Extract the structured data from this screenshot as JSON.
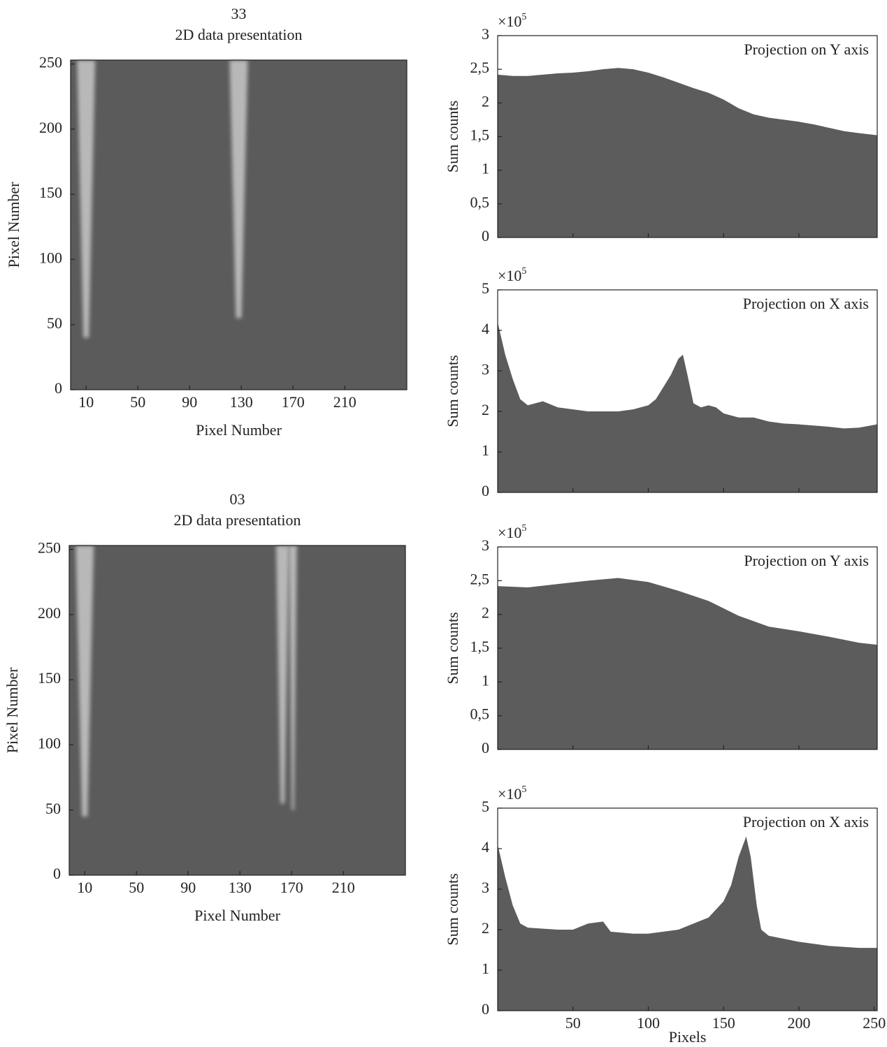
{
  "chart_data": [
    {
      "type": "image",
      "title": "33",
      "subtitle": "2D data presentation",
      "xlabel": "Pixel Number",
      "ylabel": "Pixel Number",
      "xlim": [
        -2,
        258
      ],
      "ylim": [
        0,
        253
      ],
      "xticks": [
        10,
        50,
        90,
        130,
        170,
        210
      ],
      "yticks": [
        0,
        50,
        100,
        150,
        200,
        250
      ],
      "background": "#5b5b5b",
      "band_color": "#d0d0d0",
      "bands": [
        {
          "x": 10,
          "y_from": 40,
          "y_to": 253,
          "width": 14
        },
        {
          "x": 128,
          "y_from": 55,
          "y_to": 253,
          "width": 14
        }
      ]
    },
    {
      "type": "area",
      "annotation": "Projection on Y axis",
      "ylabel": "Sum counts",
      "y_multiplier": "×10",
      "y_exponent": "5",
      "xlim": [
        0,
        252
      ],
      "ylim": [
        0,
        3
      ],
      "xticks": [
        50,
        100,
        150,
        200
      ],
      "xtick_labels": false,
      "yticks": [
        0,
        {
          "value": 0.5,
          "label": "0,5"
        },
        1,
        {
          "value": 1.5,
          "label": "1,5"
        },
        2,
        {
          "value": 2.5,
          "label": "2,5"
        },
        3
      ],
      "color": "#5c5c5c",
      "x": [
        0,
        10,
        20,
        30,
        40,
        50,
        60,
        70,
        80,
        90,
        100,
        110,
        120,
        130,
        140,
        150,
        160,
        170,
        180,
        190,
        200,
        210,
        220,
        230,
        240,
        252
      ],
      "values": [
        2.42,
        2.4,
        2.4,
        2.42,
        2.44,
        2.45,
        2.47,
        2.5,
        2.52,
        2.5,
        2.45,
        2.38,
        2.3,
        2.22,
        2.15,
        2.05,
        1.92,
        1.83,
        1.78,
        1.75,
        1.72,
        1.68,
        1.63,
        1.58,
        1.55,
        1.52
      ]
    },
    {
      "type": "area",
      "annotation": "Projection on X axis",
      "ylabel": "Sum counts",
      "y_multiplier": "×10",
      "y_exponent": "5",
      "xlim": [
        0,
        252
      ],
      "ylim": [
        0,
        5
      ],
      "xticks": [
        50,
        100,
        150,
        200
      ],
      "xtick_labels": false,
      "yticks": [
        0,
        1,
        2,
        3,
        4,
        5
      ],
      "color": "#5c5c5c",
      "x": [
        0,
        5,
        10,
        15,
        20,
        25,
        30,
        40,
        50,
        60,
        70,
        80,
        90,
        100,
        105,
        110,
        115,
        120,
        123,
        126,
        130,
        135,
        140,
        145,
        150,
        160,
        170,
        180,
        190,
        200,
        210,
        220,
        230,
        240,
        252
      ],
      "values": [
        4.2,
        3.4,
        2.8,
        2.3,
        2.15,
        2.2,
        2.25,
        2.1,
        2.05,
        2.0,
        2.0,
        2.0,
        2.05,
        2.15,
        2.3,
        2.6,
        2.9,
        3.3,
        3.4,
        2.9,
        2.2,
        2.1,
        2.15,
        2.1,
        1.95,
        1.85,
        1.85,
        1.75,
        1.7,
        1.68,
        1.65,
        1.62,
        1.58,
        1.6,
        1.68
      ]
    },
    {
      "type": "image",
      "title": "03",
      "subtitle": "2D data presentation",
      "xlabel": "Pixel Number",
      "ylabel": "Pixel Number",
      "xlim": [
        -2,
        258
      ],
      "ylim": [
        0,
        253
      ],
      "xticks": [
        10,
        50,
        90,
        130,
        170,
        210
      ],
      "yticks": [
        0,
        50,
        100,
        150,
        200,
        250
      ],
      "background": "#5b5b5b",
      "band_color": "#d0d0d0",
      "bands": [
        {
          "x": 10,
          "y_from": 45,
          "y_to": 253,
          "width": 14
        },
        {
          "x": 163,
          "y_from": 55,
          "y_to": 253,
          "width": 10
        },
        {
          "x": 171,
          "y_from": 50,
          "y_to": 253,
          "width": 6
        }
      ]
    },
    {
      "type": "area",
      "annotation": "Projection on Y axis",
      "ylabel": "Sum counts",
      "y_multiplier": "×10",
      "y_exponent": "5",
      "xlim": [
        0,
        252
      ],
      "ylim": [
        0,
        3
      ],
      "xticks": [
        50,
        100,
        150,
        200
      ],
      "xtick_labels": false,
      "yticks": [
        0,
        {
          "value": 0.5,
          "label": "0,5"
        },
        1,
        {
          "value": 1.5,
          "label": "1,5"
        },
        2,
        {
          "value": 2.5,
          "label": "2,5"
        },
        3
      ],
      "color": "#5c5c5c",
      "x": [
        0,
        20,
        40,
        60,
        80,
        100,
        120,
        140,
        160,
        180,
        200,
        220,
        240,
        252
      ],
      "values": [
        2.42,
        2.4,
        2.45,
        2.5,
        2.54,
        2.48,
        2.35,
        2.2,
        1.98,
        1.82,
        1.75,
        1.67,
        1.58,
        1.55
      ]
    },
    {
      "type": "area",
      "annotation": "Projection on X axis",
      "ylabel": "Sum counts",
      "xlabel": "Pixels",
      "y_multiplier": "×10",
      "y_exponent": "5",
      "xlim": [
        0,
        252
      ],
      "ylim": [
        0,
        5
      ],
      "xticks": [
        50,
        100,
        150,
        200,
        250
      ],
      "xtick_labels": true,
      "yticks": [
        0,
        1,
        2,
        3,
        4,
        5
      ],
      "color": "#5c5c5c",
      "x": [
        0,
        5,
        10,
        15,
        20,
        40,
        50,
        60,
        70,
        75,
        90,
        100,
        120,
        140,
        150,
        155,
        160,
        165,
        168,
        172,
        175,
        180,
        200,
        220,
        240,
        252
      ],
      "values": [
        4.1,
        3.3,
        2.6,
        2.15,
        2.05,
        2.0,
        2.0,
        2.15,
        2.2,
        1.95,
        1.9,
        1.9,
        2.0,
        2.3,
        2.7,
        3.1,
        3.8,
        4.3,
        3.8,
        2.6,
        2.0,
        1.85,
        1.7,
        1.6,
        1.55,
        1.55
      ]
    }
  ]
}
